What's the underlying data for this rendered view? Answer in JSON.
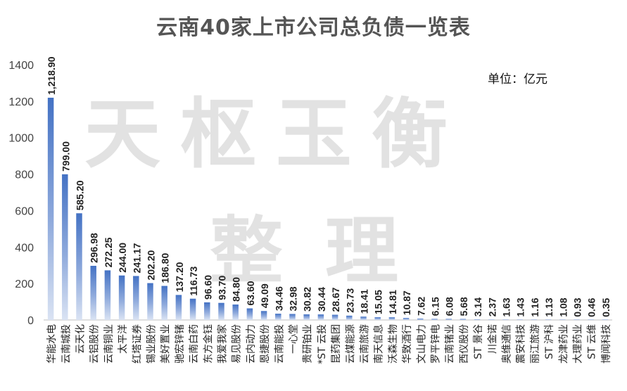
{
  "chart_data": {
    "type": "bar",
    "title": "云南40家上市公司总负债一览表",
    "unit_label": "单位：亿元",
    "watermark": [
      "天枢玉衡",
      "整理"
    ],
    "ylim": [
      0,
      1400
    ],
    "yticks": [
      0,
      200,
      400,
      600,
      800,
      1000,
      1200,
      1400
    ],
    "grid": false,
    "bar_color": "#4472c4",
    "categories": [
      "华能水电",
      "云南城投",
      "云天化",
      "云铝股份",
      "云南铜业",
      "太平洋",
      "红塔证券",
      "锡业股份",
      "美好置业",
      "驰宏锌锗",
      "云南白药",
      "东方金钰",
      "我爱我家",
      "易见股份",
      "云内动力",
      "恩捷股份",
      "云南能投",
      "一心堂",
      "贵研铂业",
      "*ST 云投",
      "昆药集团",
      "云煤能源",
      "云南旅游",
      "南天信息",
      "沃森生物",
      "华致酒行",
      "文山电力",
      "罗平锌电",
      "云南锗业",
      "西仪股份",
      "ST 景谷",
      "川金诺",
      "奥维通信",
      "震安科技",
      "丽江旅游",
      "ST 沪科",
      "龙津药业",
      "大理药业",
      "ST 云维",
      "博闻科技"
    ],
    "values": [
      1218.9,
      799.0,
      585.2,
      296.98,
      272.25,
      244.0,
      241.17,
      202.2,
      186.8,
      137.2,
      116.73,
      96.6,
      93.7,
      84.8,
      63.6,
      49.09,
      34.46,
      32.98,
      30.82,
      30.44,
      28.67,
      23.73,
      18.41,
      15.05,
      14.81,
      10.87,
      7.62,
      6.15,
      6.08,
      5.68,
      3.14,
      2.37,
      1.63,
      1.43,
      1.16,
      1.13,
      1.08,
      0.93,
      0.46,
      0.35
    ],
    "value_labels": [
      "1,218.90",
      "799.00",
      "585.20",
      "296.98",
      "272.25",
      "244.00",
      "241.17",
      "202.20",
      "186.80",
      "137.20",
      "116.73",
      "96.60",
      "93.70",
      "84.80",
      "63.60",
      "49.09",
      "34.46",
      "32.98",
      "30.82",
      "30.44",
      "28.67",
      "23.73",
      "18.41",
      "15.05",
      "14.81",
      "10.87",
      "7.62",
      "6.15",
      "6.08",
      "5.68",
      "3.14",
      "2.37",
      "1.63",
      "1.43",
      "1.16",
      "1.13",
      "1.08",
      "0.93",
      "0.46",
      "0.35"
    ]
  }
}
